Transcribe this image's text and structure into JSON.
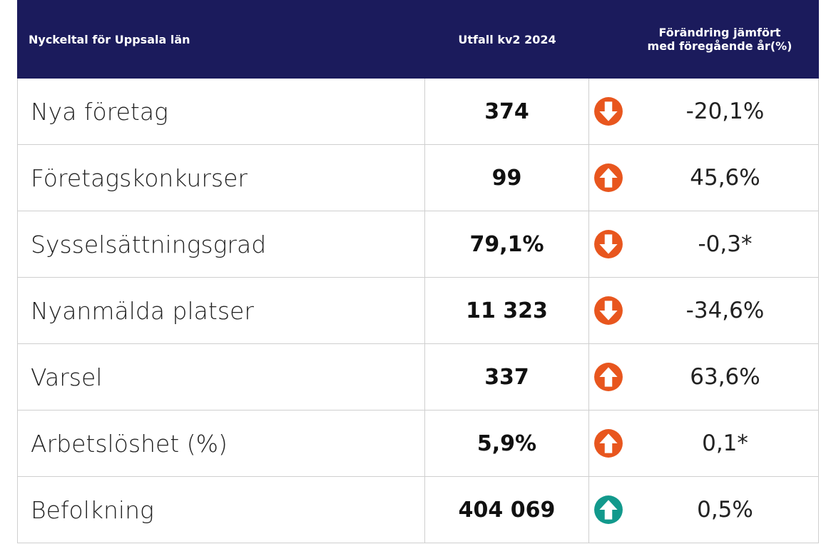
{
  "table": {
    "header": [
      "Nyckeltal för Uppsala län",
      "Utfall kv2 2024",
      [
        "Förändring jämfört",
        "med föregående år(%)"
      ]
    ],
    "rows": [
      {
        "label": "Nya företag",
        "value": "374",
        "change": "-20,1%",
        "trend": "down",
        "icon_color": "#e8561e"
      },
      {
        "label": "Företagskonkurser",
        "value": "99",
        "change": "45,6%",
        "trend": "up",
        "icon_color": "#e8561e"
      },
      {
        "label": "Sysselsättningsgrad",
        "value": "79,1%",
        "change": "-0,3*",
        "trend": "down",
        "icon_color": "#e8561e"
      },
      {
        "label": "Nyanmälda platser",
        "value": "11 323",
        "change": "-34,6%",
        "trend": "down",
        "icon_color": "#e8561e"
      },
      {
        "label": "Varsel",
        "value": "337",
        "change": "63,6%",
        "trend": "up",
        "icon_color": "#e8561e"
      },
      {
        "label": "Arbetslöshet (%)",
        "value": "5,9%",
        "change": "0,1*",
        "trend": "up",
        "icon_color": "#e8561e"
      },
      {
        "label": "Befolkning",
        "value": "404 069",
        "change": "0,5%",
        "trend": "up",
        "icon_color": "#12998c"
      }
    ]
  }
}
